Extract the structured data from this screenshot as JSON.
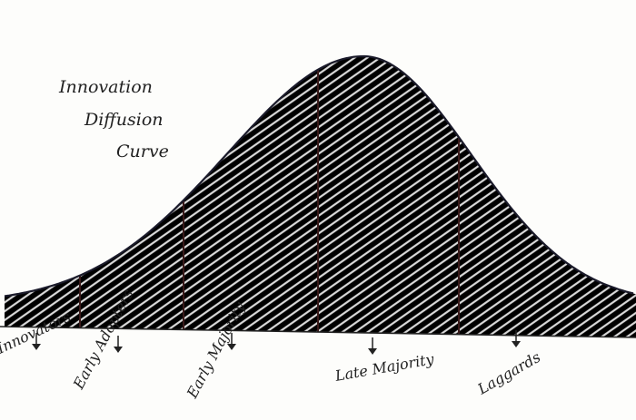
{
  "title": [
    "Innovation",
    "Diffusion",
    "Curve"
  ],
  "segments": [
    {
      "label": "Innovators"
    },
    {
      "label": "Early Adopters"
    },
    {
      "label": "Early Majority"
    },
    {
      "label": "Late Majority"
    },
    {
      "label": "Laggards"
    }
  ]
}
